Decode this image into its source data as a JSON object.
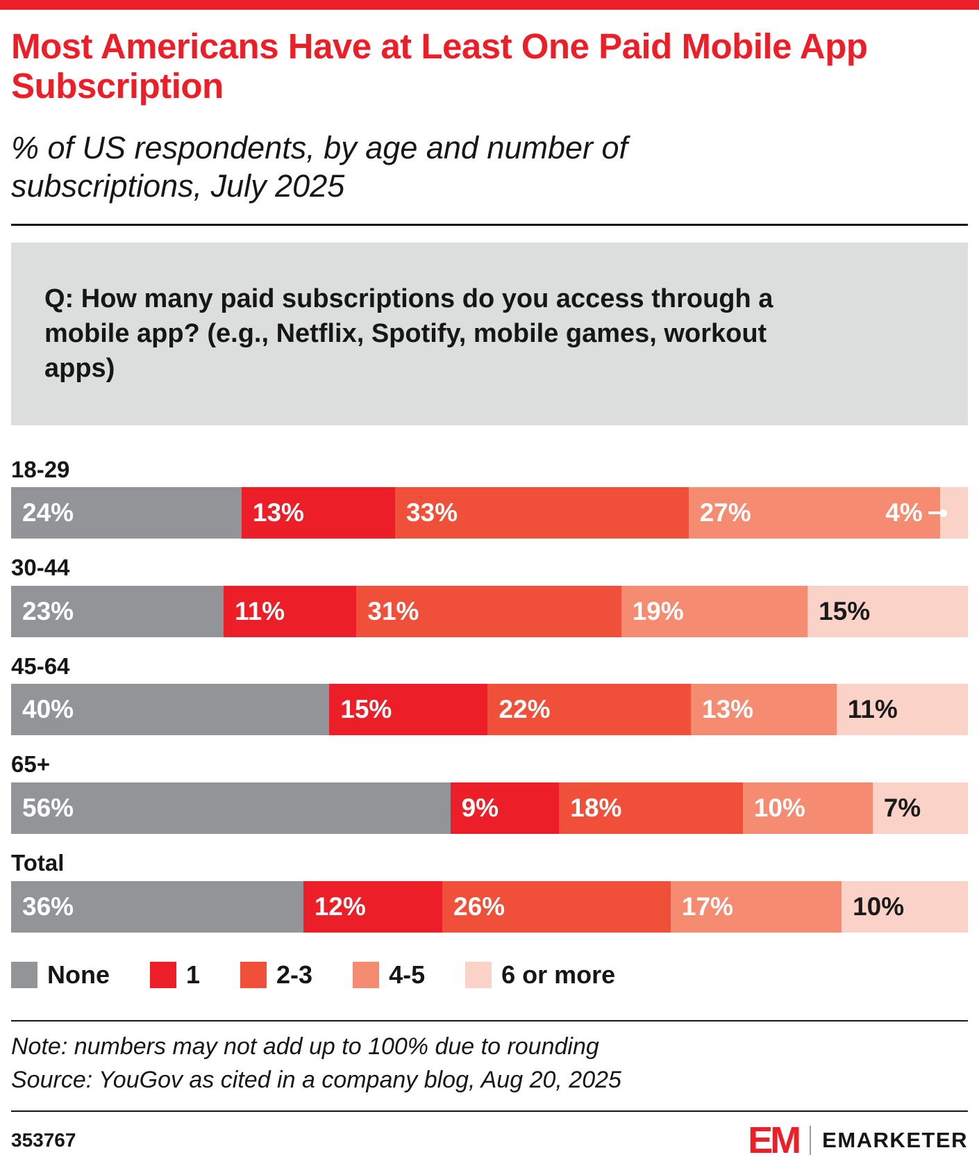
{
  "title": "Most Americans Have at Least One Paid Mobile App Subscription",
  "subtitle": "% of US respondents, by age and number of subscriptions, July 2025",
  "question": "Q: How many paid subscriptions do you access through a mobile app? (e.g., Netflix, Spotify, mobile games, workout apps)",
  "colors": {
    "accent_red": "#ec1e27",
    "question_box_gray": "#dcdddd",
    "ink": "#161616"
  },
  "chart_data": {
    "type": "bar",
    "stacked": true,
    "orientation": "horizontal",
    "title": "Most Americans Have at Least One Paid Mobile App Subscription",
    "subtitle": "% of US respondents, by age and number of subscriptions, July 2025",
    "categories": [
      "18-29",
      "30-44",
      "45-64",
      "65+",
      "Total"
    ],
    "series": [
      {
        "name": "None",
        "color": "#929497",
        "label_color": "#ffffff",
        "values": [
          24,
          23,
          40,
          56,
          36
        ]
      },
      {
        "name": "1",
        "color": "#ec1e27",
        "label_color": "#ffffff",
        "values": [
          13,
          11,
          15,
          9,
          12
        ]
      },
      {
        "name": "2-3",
        "color": "#f0503a",
        "label_color": "#ffffff",
        "values": [
          33,
          31,
          22,
          18,
          26
        ]
      },
      {
        "name": "4-5",
        "color": "#f58b70",
        "label_color": "#ffffff",
        "values": [
          27,
          19,
          13,
          10,
          17
        ]
      },
      {
        "name": "6 or more",
        "color": "#fad2c7",
        "label_color": "#1a1a1a",
        "values": [
          4,
          15,
          11,
          7,
          10
        ]
      }
    ],
    "value_suffix": "%",
    "xlim": [
      0,
      100
    ],
    "grid": false,
    "legend_position": "bottom",
    "callout_threshold": 5
  },
  "note": "Note: numbers may not add up to 100% due to rounding",
  "source": "Source: YouGov as cited in a company blog, Aug 20, 2025",
  "chart_id": "353767",
  "brand": {
    "logo_text": "EM",
    "name": "EMARKETER"
  }
}
